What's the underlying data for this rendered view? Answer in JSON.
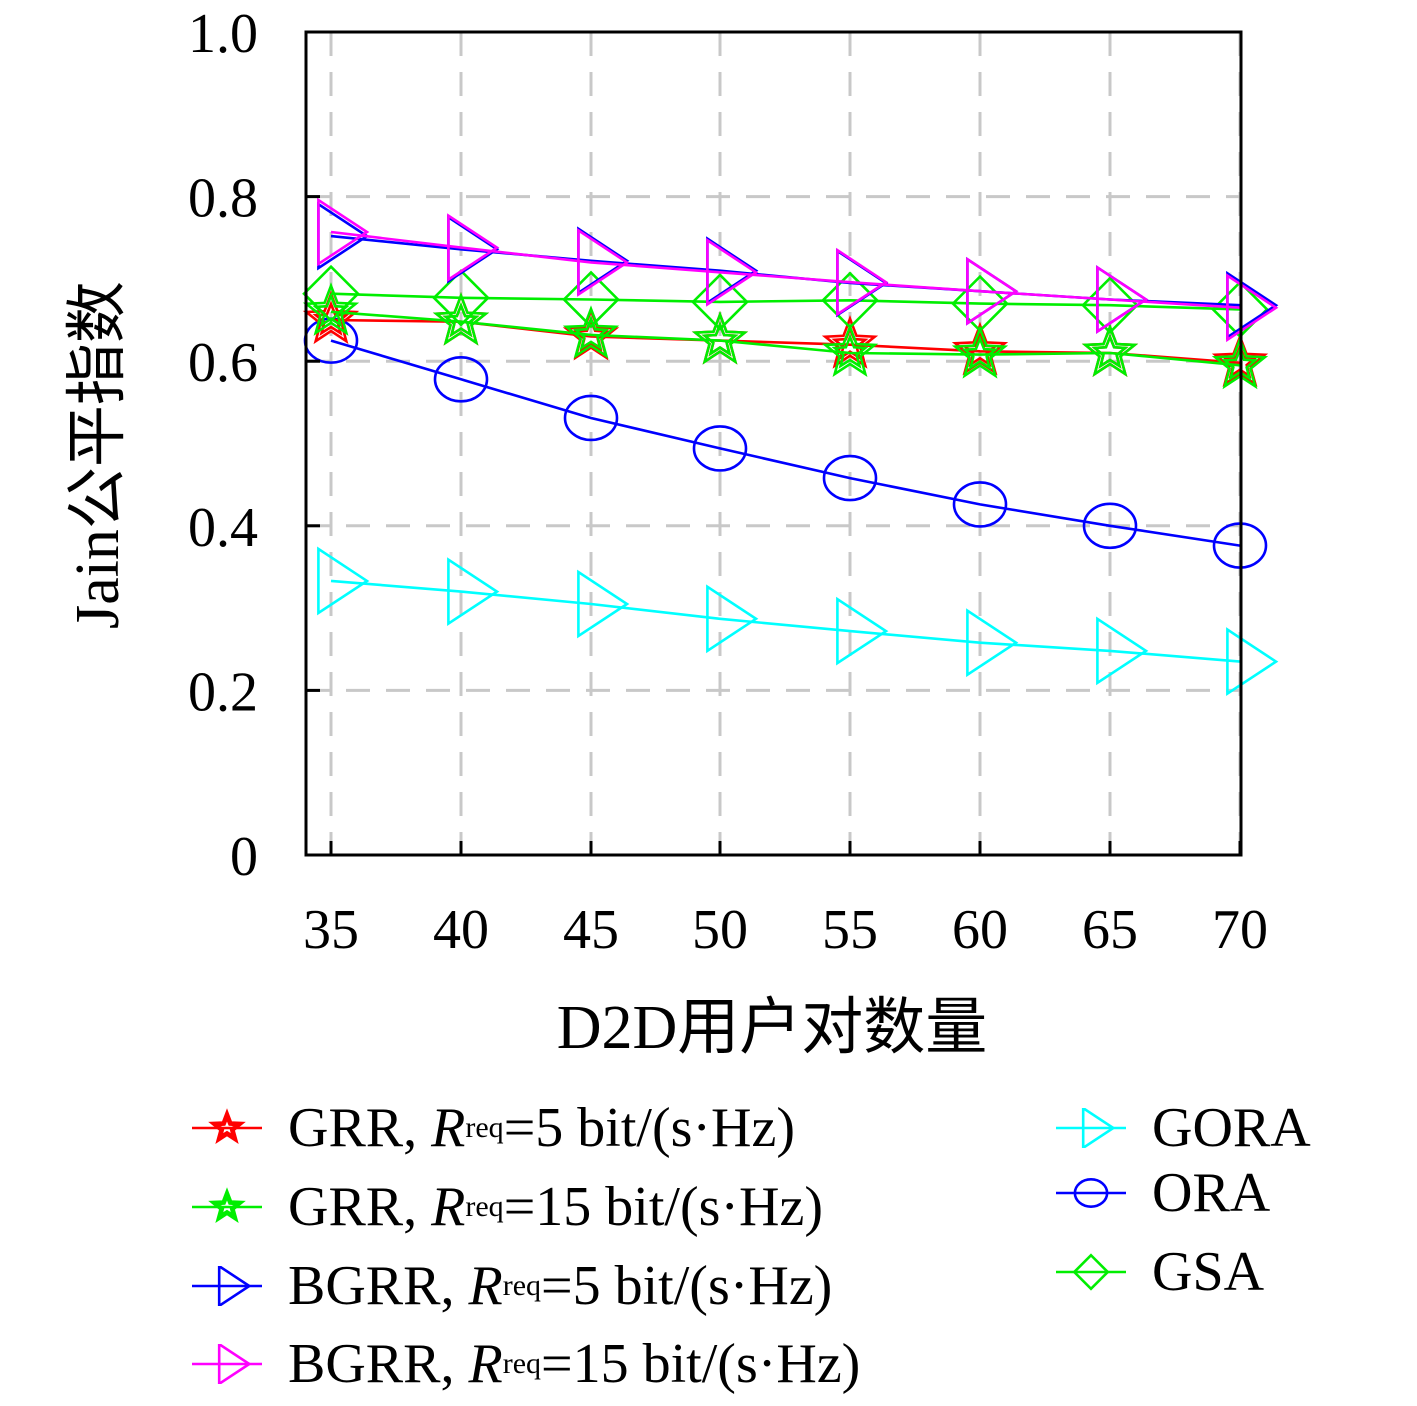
{
  "chart_data": {
    "type": "line",
    "title": "",
    "xlabel": "D2D用户对数量",
    "ylabel": "Jain公平指数",
    "x": [
      35,
      40,
      45,
      50,
      55,
      60,
      65,
      70
    ],
    "xticks": [
      "35",
      "40",
      "45",
      "50",
      "55",
      "60",
      "65",
      "70"
    ],
    "ylim": [
      0,
      1.0
    ],
    "yticks": [
      "0",
      "0.2",
      "0.4",
      "0.6",
      "0.8",
      "1.0"
    ],
    "grid": true,
    "legend_position": "bottom",
    "series": [
      {
        "name": "GRR, R^req=5 bit/(s·Hz)",
        "label": "GRR,",
        "r_symbol": "R",
        "sup": "req",
        "rest": "=5 bit/(s·Hz)",
        "color": "#ff0000",
        "marker": "star-icon",
        "values": [
          0.65,
          0.648,
          0.63,
          0.625,
          0.62,
          0.612,
          0.61,
          0.598
        ]
      },
      {
        "name": "GRR, R^req=15 bit/(s·Hz)",
        "label": "GRR,",
        "r_symbol": "R",
        "sup": "req",
        "rest": "=15 bit/(s·Hz)",
        "color": "#00ee00",
        "marker": "star-icon",
        "values": [
          0.66,
          0.648,
          0.632,
          0.625,
          0.61,
          0.608,
          0.61,
          0.595
        ]
      },
      {
        "name": "BGRR, R^req=5 bit/(s·Hz)",
        "label": "BGRR,",
        "r_symbol": "R",
        "sup": "req",
        "rest": "=5 bit/(s·Hz)",
        "color": "#0000ff",
        "marker": "triangle-right-icon",
        "values": [
          0.752,
          0.736,
          0.722,
          0.71,
          0.695,
          0.685,
          0.675,
          0.668
        ]
      },
      {
        "name": "BGRR, R^req=15 bit/(s·Hz)",
        "label": "BGRR,",
        "r_symbol": "R",
        "sup": "req",
        "rest": "=15 bit/(s·Hz)",
        "color": "#ff00ff",
        "marker": "triangle-right-icon",
        "values": [
          0.757,
          0.738,
          0.72,
          0.708,
          0.696,
          0.685,
          0.675,
          0.665
        ]
      },
      {
        "name": "GORA",
        "label": "GORA",
        "color": "#00ffff",
        "marker": "triangle-right-icon",
        "values": [
          0.333,
          0.32,
          0.305,
          0.287,
          0.272,
          0.258,
          0.248,
          0.235
        ]
      },
      {
        "name": "ORA",
        "label": "ORA",
        "color": "#0000ff",
        "marker": "circle-icon",
        "values": [
          0.625,
          0.578,
          0.531,
          0.494,
          0.458,
          0.426,
          0.4,
          0.376
        ]
      },
      {
        "name": "GSA",
        "label": "GSA",
        "color": "#00ee00",
        "marker": "diamond-icon",
        "values": [
          0.682,
          0.677,
          0.675,
          0.672,
          0.674,
          0.67,
          0.668,
          0.663
        ]
      }
    ]
  }
}
